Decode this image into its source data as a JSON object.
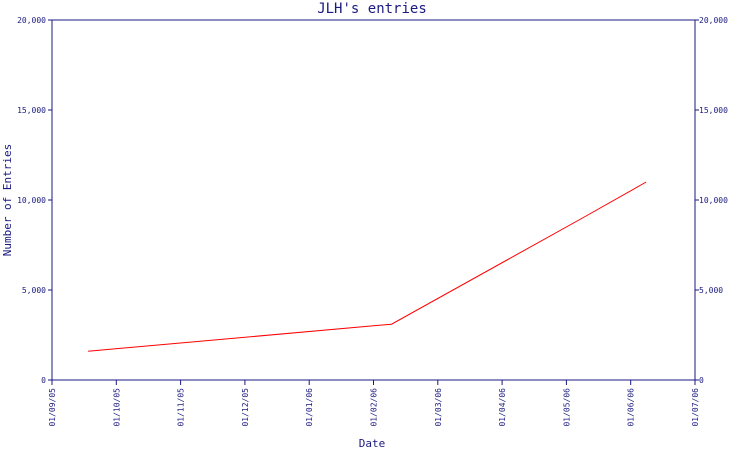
{
  "chart_data": {
    "type": "line",
    "title": "JLH's entries",
    "xlabel": "Date",
    "ylabel": "Number of Entries",
    "x_ticks": [
      "01/09/05",
      "01/10/05",
      "01/11/05",
      "01/12/05",
      "01/01/06",
      "01/02/06",
      "01/03/06",
      "01/04/06",
      "01/05/06",
      "01/06/06",
      "01/07/06"
    ],
    "y_ticks": [
      "0",
      "5,000",
      "10,000",
      "15,000",
      "20,000"
    ],
    "y_tick_values": [
      0,
      5000,
      10000,
      15000,
      20000
    ],
    "ylim": [
      0,
      20000
    ],
    "xlim": [
      "2005-09-01",
      "2006-07-01"
    ],
    "grid": false,
    "series": [
      {
        "color": "#ff0000",
        "points": [
          {
            "x": "2005-09-18",
            "y": 1600
          },
          {
            "x": "2006-02-08",
            "y": 3100
          },
          {
            "x": "2006-05-09",
            "y": 9000
          },
          {
            "x": "2006-06-08",
            "y": 11000
          }
        ]
      }
    ]
  }
}
